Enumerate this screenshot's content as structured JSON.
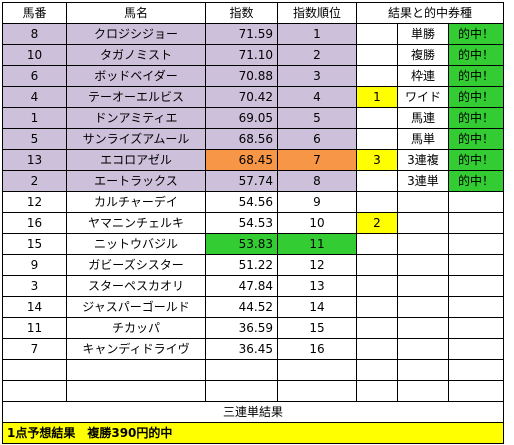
{
  "headers": {
    "num": "馬番",
    "name": "馬名",
    "index": "指数",
    "rank": "指数順位",
    "result": "結果と的中券種"
  },
  "colors": {
    "top_rows": "#ccc0da",
    "orange": "#f79646",
    "hit": "#33cc33",
    "mark": "#ffff00"
  },
  "rows": [
    {
      "num": "8",
      "name": "クロジシジョー",
      "index": "71.59",
      "rank": "1",
      "mark": "",
      "bet": "単勝",
      "hit": "的中！"
    },
    {
      "num": "10",
      "name": "タガノミスト",
      "index": "71.10",
      "rank": "2",
      "mark": "",
      "bet": "複勝",
      "hit": "的中！"
    },
    {
      "num": "6",
      "name": "ボッドベイダー",
      "index": "70.88",
      "rank": "3",
      "mark": "",
      "bet": "枠連",
      "hit": "的中！"
    },
    {
      "num": "4",
      "name": "テーオーエルビス",
      "index": "70.42",
      "rank": "4",
      "mark": "1",
      "bet": "ワイド",
      "hit": "的中！"
    },
    {
      "num": "1",
      "name": "ドンアミティエ",
      "index": "69.05",
      "rank": "5",
      "mark": "",
      "bet": "馬連",
      "hit": "的中！"
    },
    {
      "num": "5",
      "name": "サンライズアムール",
      "index": "68.56",
      "rank": "6",
      "mark": "",
      "bet": "馬単",
      "hit": "的中！"
    },
    {
      "num": "13",
      "name": "エコロアゼル",
      "index": "68.45",
      "rank": "7",
      "mark": "3",
      "bet": "3連複",
      "hit": "的中！"
    },
    {
      "num": "2",
      "name": "エートラックス",
      "index": "57.74",
      "rank": "8",
      "mark": "",
      "bet": "3連単",
      "hit": "的中！"
    },
    {
      "num": "12",
      "name": "カルチャーデイ",
      "index": "54.56",
      "rank": "9",
      "mark": "",
      "bet": "",
      "hit": ""
    },
    {
      "num": "16",
      "name": "ヤマニンチェルキ",
      "index": "54.53",
      "rank": "10",
      "mark": "2",
      "bet": "",
      "hit": ""
    },
    {
      "num": "15",
      "name": "ニットウバジル",
      "index": "53.83",
      "rank": "11",
      "mark": "",
      "bet": "",
      "hit": ""
    },
    {
      "num": "9",
      "name": "ガビーズシスター",
      "index": "51.22",
      "rank": "12",
      "mark": "",
      "bet": "",
      "hit": ""
    },
    {
      "num": "3",
      "name": "スターペスカオリ",
      "index": "47.84",
      "rank": "13",
      "mark": "",
      "bet": "",
      "hit": ""
    },
    {
      "num": "14",
      "name": "ジャスパーゴールド",
      "index": "44.52",
      "rank": "14",
      "mark": "",
      "bet": "",
      "hit": ""
    },
    {
      "num": "11",
      "name": "チカッパ",
      "index": "36.59",
      "rank": "15",
      "mark": "",
      "bet": "",
      "hit": ""
    },
    {
      "num": "7",
      "name": "キャンディドライヴ",
      "index": "36.45",
      "rank": "16",
      "mark": "",
      "bet": "",
      "hit": ""
    },
    {
      "num": "",
      "name": "",
      "index": "",
      "rank": "",
      "mark": "",
      "bet": "",
      "hit": ""
    },
    {
      "num": "",
      "name": "",
      "index": "",
      "rank": "",
      "mark": "",
      "bet": "",
      "hit": ""
    }
  ],
  "footer": {
    "title": "三連単結果",
    "result": "1点予想結果　複勝390円的中"
  }
}
